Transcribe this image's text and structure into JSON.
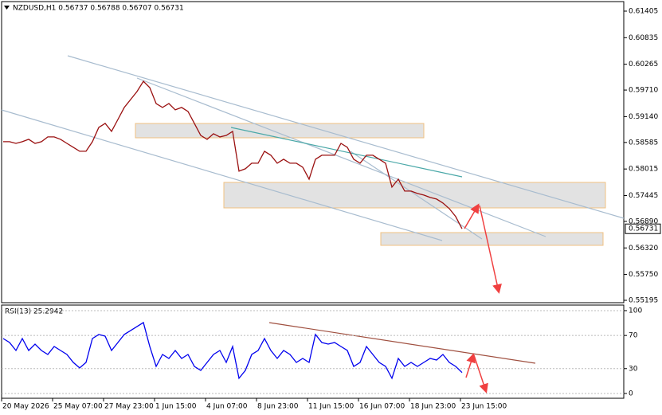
{
  "chart_data": [
    {
      "type": "line",
      "title": "NZDUSD,H1 0.56737 0.56788 0.56707 0.56731",
      "color": "#9a1010",
      "values": [
        0.58601,
        0.58601,
        0.58566,
        0.58601,
        0.58652,
        0.58566,
        0.58601,
        0.58703,
        0.58703,
        0.58652,
        0.58566,
        0.58481,
        0.58395,
        0.58395,
        0.58601,
        0.58908,
        0.58994,
        0.58823,
        0.59079,
        0.59336,
        0.59507,
        0.59678,
        0.599,
        0.59763,
        0.59421,
        0.59336,
        0.59421,
        0.59285,
        0.59336,
        0.5925,
        0.58994,
        0.58737,
        0.58652,
        0.58772,
        0.58703,
        0.58737,
        0.58823,
        0.57968,
        0.58019,
        0.58139,
        0.58139,
        0.58395,
        0.5831,
        0.58139,
        0.58224,
        0.58139,
        0.58139,
        0.58053,
        0.57797,
        0.58224,
        0.5831,
        0.5831,
        0.5831,
        0.58566,
        0.58481,
        0.58224,
        0.58139,
        0.5831,
        0.5831,
        0.58224,
        0.58139,
        0.57626,
        0.57797,
        0.5754,
        0.5754,
        0.57489,
        0.57455,
        0.57404,
        0.57369,
        0.57284,
        0.57164,
        0.56993,
        0.56731,
        null,
        null,
        null,
        null,
        null,
        null,
        null,
        null,
        null,
        null,
        null,
        null,
        null,
        null,
        null,
        null,
        null,
        null,
        null,
        null,
        null,
        null,
        null,
        null
      ],
      "ylim": [
        0.55144,
        0.6161
      ],
      "yticks": [
        0.61405,
        0.60835,
        0.60265,
        {
          "value": 0.5971,
          "label": "0.59710"
        },
        {
          "value": 0.5914,
          "label": "0.59140"
        },
        0.58585,
        0.58015,
        0.57445,
        {
          "value": 0.5689,
          "label": "0.56890"
        },
        {
          "value": 0.5632,
          "label": "0.56320"
        },
        {
          "value": 0.5575,
          "label": "0.55750"
        },
        0.55195
      ]
    },
    {
      "type": "line",
      "title": "RSI(13) 25.2942",
      "color": "#0000ee",
      "categories": [
        "20 May 2026",
        null,
        null,
        null,
        null,
        null,
        null,
        null,
        "25 May 07:00",
        null,
        null,
        null,
        null,
        null,
        null,
        null,
        "27 May 23:00",
        null,
        null,
        null,
        null,
        null,
        null,
        null,
        "1 Jun 15:00",
        null,
        null,
        null,
        null,
        null,
        null,
        null,
        "4 Jun 07:00",
        null,
        null,
        null,
        null,
        null,
        null,
        null,
        "8 Jun 23:00",
        null,
        null,
        null,
        null,
        null,
        null,
        null,
        "11 Jun 15:00",
        null,
        null,
        null,
        null,
        null,
        null,
        null,
        "16 Jun 07:00",
        null,
        null,
        null,
        null,
        null,
        null,
        null,
        "18 Jun 23:00",
        null,
        null,
        null,
        null,
        null,
        null,
        null,
        "23 Jun 15:00",
        null,
        null,
        null,
        null,
        null,
        null,
        null,
        null,
        null,
        null,
        null,
        null,
        null,
        null,
        null,
        null,
        null,
        null,
        null,
        null,
        null,
        null,
        null,
        null
      ],
      "values": [
        66.3,
        61.5,
        51.9,
        66.3,
        51.9,
        59.6,
        51.9,
        47.1,
        56.7,
        51.9,
        47.1,
        37.5,
        30.8,
        37.5,
        66.3,
        71.2,
        69.2,
        51.9,
        61.5,
        71.2,
        76,
        80.8,
        85.6,
        56.7,
        32.7,
        47.1,
        42.3,
        51.9,
        42.3,
        47.1,
        32.7,
        27.9,
        37.5,
        47.1,
        51.9,
        37.5,
        56.7,
        18.3,
        27.9,
        47.1,
        51.9,
        66.3,
        51.9,
        42.3,
        51.9,
        47.1,
        37.5,
        42.3,
        37.5,
        71.2,
        61.5,
        59.6,
        61.5,
        56.7,
        51.9,
        32.7,
        37.5,
        56.7,
        47.1,
        37.5,
        32.7,
        18.3,
        42.3,
        32.7,
        37.5,
        32.7,
        37.5,
        42.3,
        40.4,
        47.1,
        37.5,
        32.7,
        25.3,
        null,
        null,
        null,
        null,
        null,
        null,
        null,
        null,
        null,
        null,
        null,
        null,
        null,
        null,
        null,
        null,
        null,
        null,
        null,
        null,
        null,
        null,
        null,
        null
      ],
      "ylim": [
        -5.8,
        106.7
      ],
      "yticks": [
        100,
        70,
        30,
        0
      ]
    }
  ]
}
